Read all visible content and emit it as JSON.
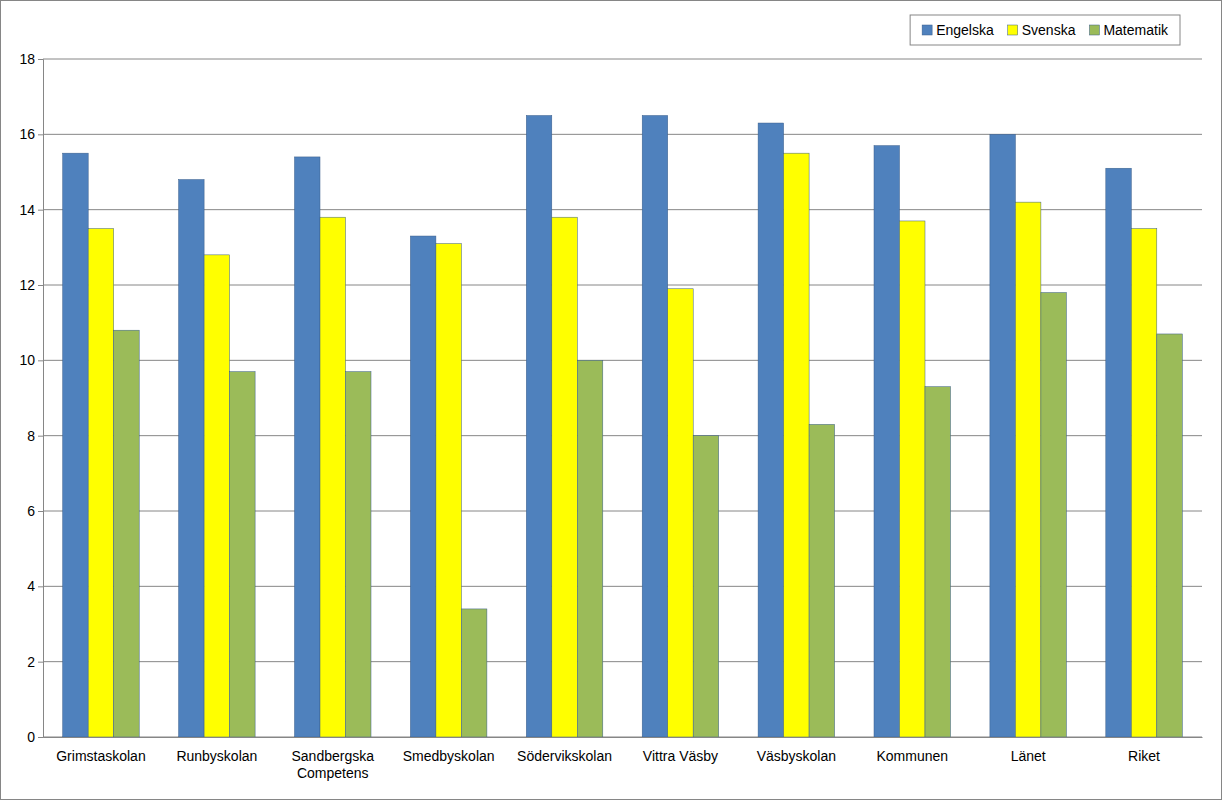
{
  "chart_data": {
    "type": "bar",
    "categories": [
      "Grimstaskolan",
      "Runbyskolan",
      "Sandbergska Competens",
      "Smedbyskolan",
      "Södervikskolan",
      "Vittra Väsby",
      "Väsbyskolan",
      "Kommunen",
      "Länet",
      "Riket"
    ],
    "series": [
      {
        "name": "Engelska",
        "color": "#4f81bd",
        "values": [
          15.5,
          14.8,
          15.4,
          13.3,
          16.5,
          16.5,
          16.3,
          15.7,
          16.0,
          15.1
        ]
      },
      {
        "name": "Svenska",
        "color": "#ffff00",
        "values": [
          13.5,
          12.8,
          13.8,
          13.1,
          13.8,
          11.9,
          15.5,
          13.7,
          14.2,
          13.5
        ]
      },
      {
        "name": "Matematik",
        "color": "#9bbb59",
        "values": [
          10.8,
          9.7,
          9.7,
          3.4,
          10.0,
          8.0,
          8.3,
          9.3,
          11.8,
          10.7
        ]
      }
    ],
    "ylim": [
      0,
      18
    ],
    "yticks": [
      0,
      2,
      4,
      6,
      8,
      10,
      12,
      14,
      16,
      18
    ],
    "grid": true,
    "legend": "top-right"
  }
}
